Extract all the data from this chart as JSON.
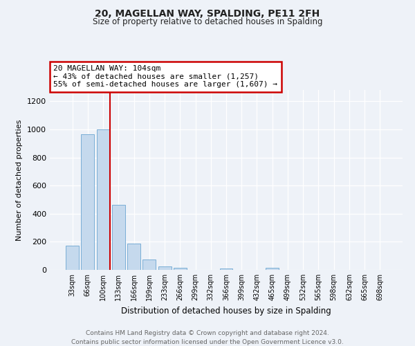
{
  "title": "20, MAGELLAN WAY, SPALDING, PE11 2FH",
  "subtitle": "Size of property relative to detached houses in Spalding",
  "xlabel": "Distribution of detached houses by size in Spalding",
  "ylabel": "Number of detached properties",
  "bar_labels": [
    "33sqm",
    "66sqm",
    "100sqm",
    "133sqm",
    "166sqm",
    "199sqm",
    "233sqm",
    "266sqm",
    "299sqm",
    "332sqm",
    "366sqm",
    "399sqm",
    "432sqm",
    "465sqm",
    "499sqm",
    "532sqm",
    "565sqm",
    "598sqm",
    "632sqm",
    "665sqm",
    "698sqm"
  ],
  "bar_values": [
    170,
    965,
    1000,
    465,
    185,
    75,
    25,
    15,
    0,
    0,
    10,
    0,
    0,
    15,
    0,
    0,
    0,
    0,
    0,
    0,
    0
  ],
  "bar_color": "#c5d9ed",
  "bar_edge_color": "#7aaed6",
  "property_line_color": "#cc0000",
  "ylim": [
    0,
    1280
  ],
  "yticks": [
    0,
    200,
    400,
    600,
    800,
    1000,
    1200
  ],
  "annotation_title": "20 MAGELLAN WAY: 104sqm",
  "annotation_line1": "← 43% of detached houses are smaller (1,257)",
  "annotation_line2": "55% of semi-detached houses are larger (1,607) →",
  "annotation_box_color": "#cc0000",
  "footer_line1": "Contains HM Land Registry data © Crown copyright and database right 2024.",
  "footer_line2": "Contains public sector information licensed under the Open Government Licence v3.0.",
  "background_color": "#eef2f8",
  "grid_color": "#ffffff"
}
